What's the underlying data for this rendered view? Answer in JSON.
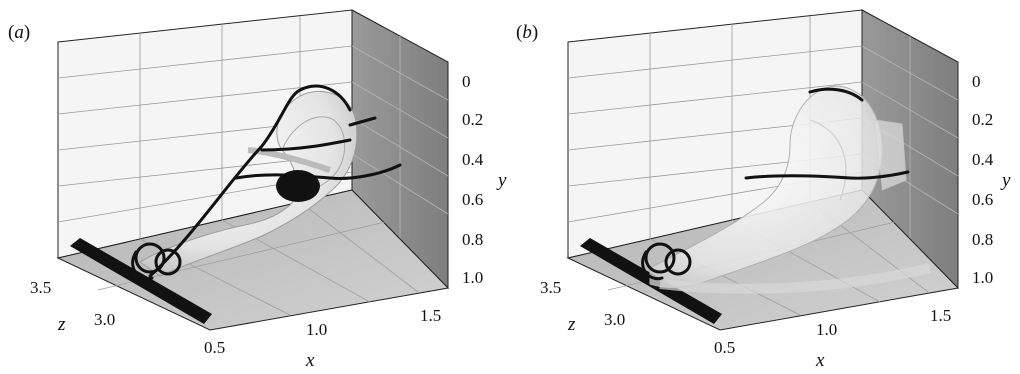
{
  "panels": [
    {
      "label": "(a)",
      "y_axis": {
        "name": "y",
        "ticks": [
          "0",
          "0.2",
          "0.4",
          "0.6",
          "0.8",
          "1.0"
        ]
      },
      "z_axis": {
        "name": "z",
        "ticks": [
          "3.5",
          "3.0"
        ]
      },
      "x_axis": {
        "name": "x",
        "ticks": [
          "0.5",
          "1.0",
          "1.5"
        ]
      },
      "surface": "opaque"
    },
    {
      "label": "(b)",
      "y_axis": {
        "name": "y",
        "ticks": [
          "0",
          "0.2",
          "0.4",
          "0.6",
          "0.8",
          "1.0"
        ]
      },
      "z_axis": {
        "name": "z",
        "ticks": [
          "3.5",
          "3.0"
        ]
      },
      "x_axis": {
        "name": "x",
        "ticks": [
          "0.5",
          "1.0",
          "1.5"
        ]
      },
      "surface": "translucent"
    }
  ],
  "colors": {
    "back_wall": "#f4f4f4",
    "side_wall": "#8c8c8c",
    "floor": "#c4c4c4",
    "frame": "#222222",
    "surface_light": "#f2f2f2",
    "surface_shade": "#bdbdbd",
    "vortex_line": "#111111"
  }
}
